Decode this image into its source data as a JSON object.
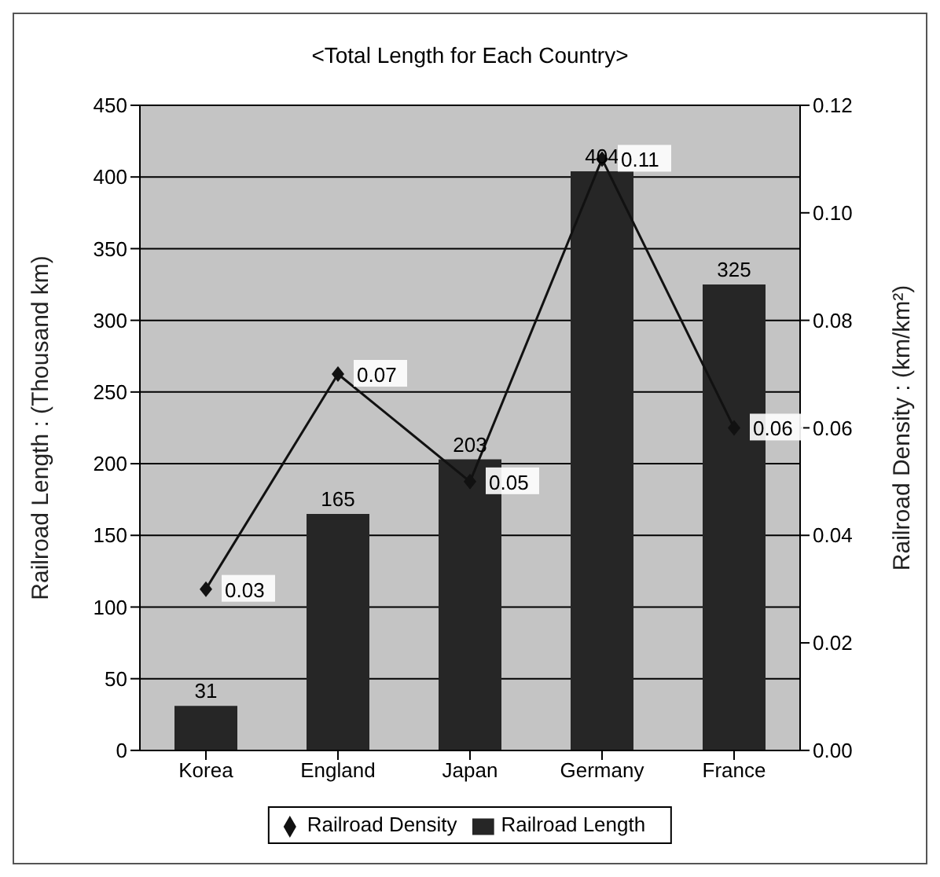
{
  "chart_data": {
    "type": "bar",
    "title": "<Total Length for Each Country>",
    "ylabel": "Railroad Length : (Thousand km)",
    "y2label": "Railroad Density : (km/km²)",
    "categories": [
      "Korea",
      "England",
      "Japan",
      "Germany",
      "France"
    ],
    "series": [
      {
        "name": "Railroad Length",
        "color": "#262626",
        "values": [
          31,
          165,
          203,
          404,
          325
        ],
        "data_labels": true
      },
      {
        "name": "Railroad Density",
        "type": "line",
        "axis": "y2",
        "color": "#111111",
        "values": [
          0.03,
          0.07,
          0.05,
          0.11,
          0.06
        ],
        "data_labels": true,
        "marker": "diamond"
      }
    ],
    "ylim": [
      0,
      450
    ],
    "yticks": [
      0,
      50,
      100,
      150,
      200,
      250,
      300,
      350,
      400,
      450
    ],
    "y2lim": [
      0,
      0.12
    ],
    "y2ticks": [
      {
        "value": 0,
        "label": "0.00"
      },
      {
        "value": 0.02,
        "label": "0.02"
      },
      {
        "value": 0.04,
        "label": "0.04"
      },
      {
        "value": 0.06,
        "label": "0.06"
      },
      {
        "value": 0.08,
        "label": "0.08"
      },
      {
        "value": 0.1,
        "label": "0.10"
      },
      {
        "value": 0.12,
        "label": "0.12"
      }
    ],
    "grid": "y",
    "legend": "bottom",
    "line_style": "solid"
  }
}
